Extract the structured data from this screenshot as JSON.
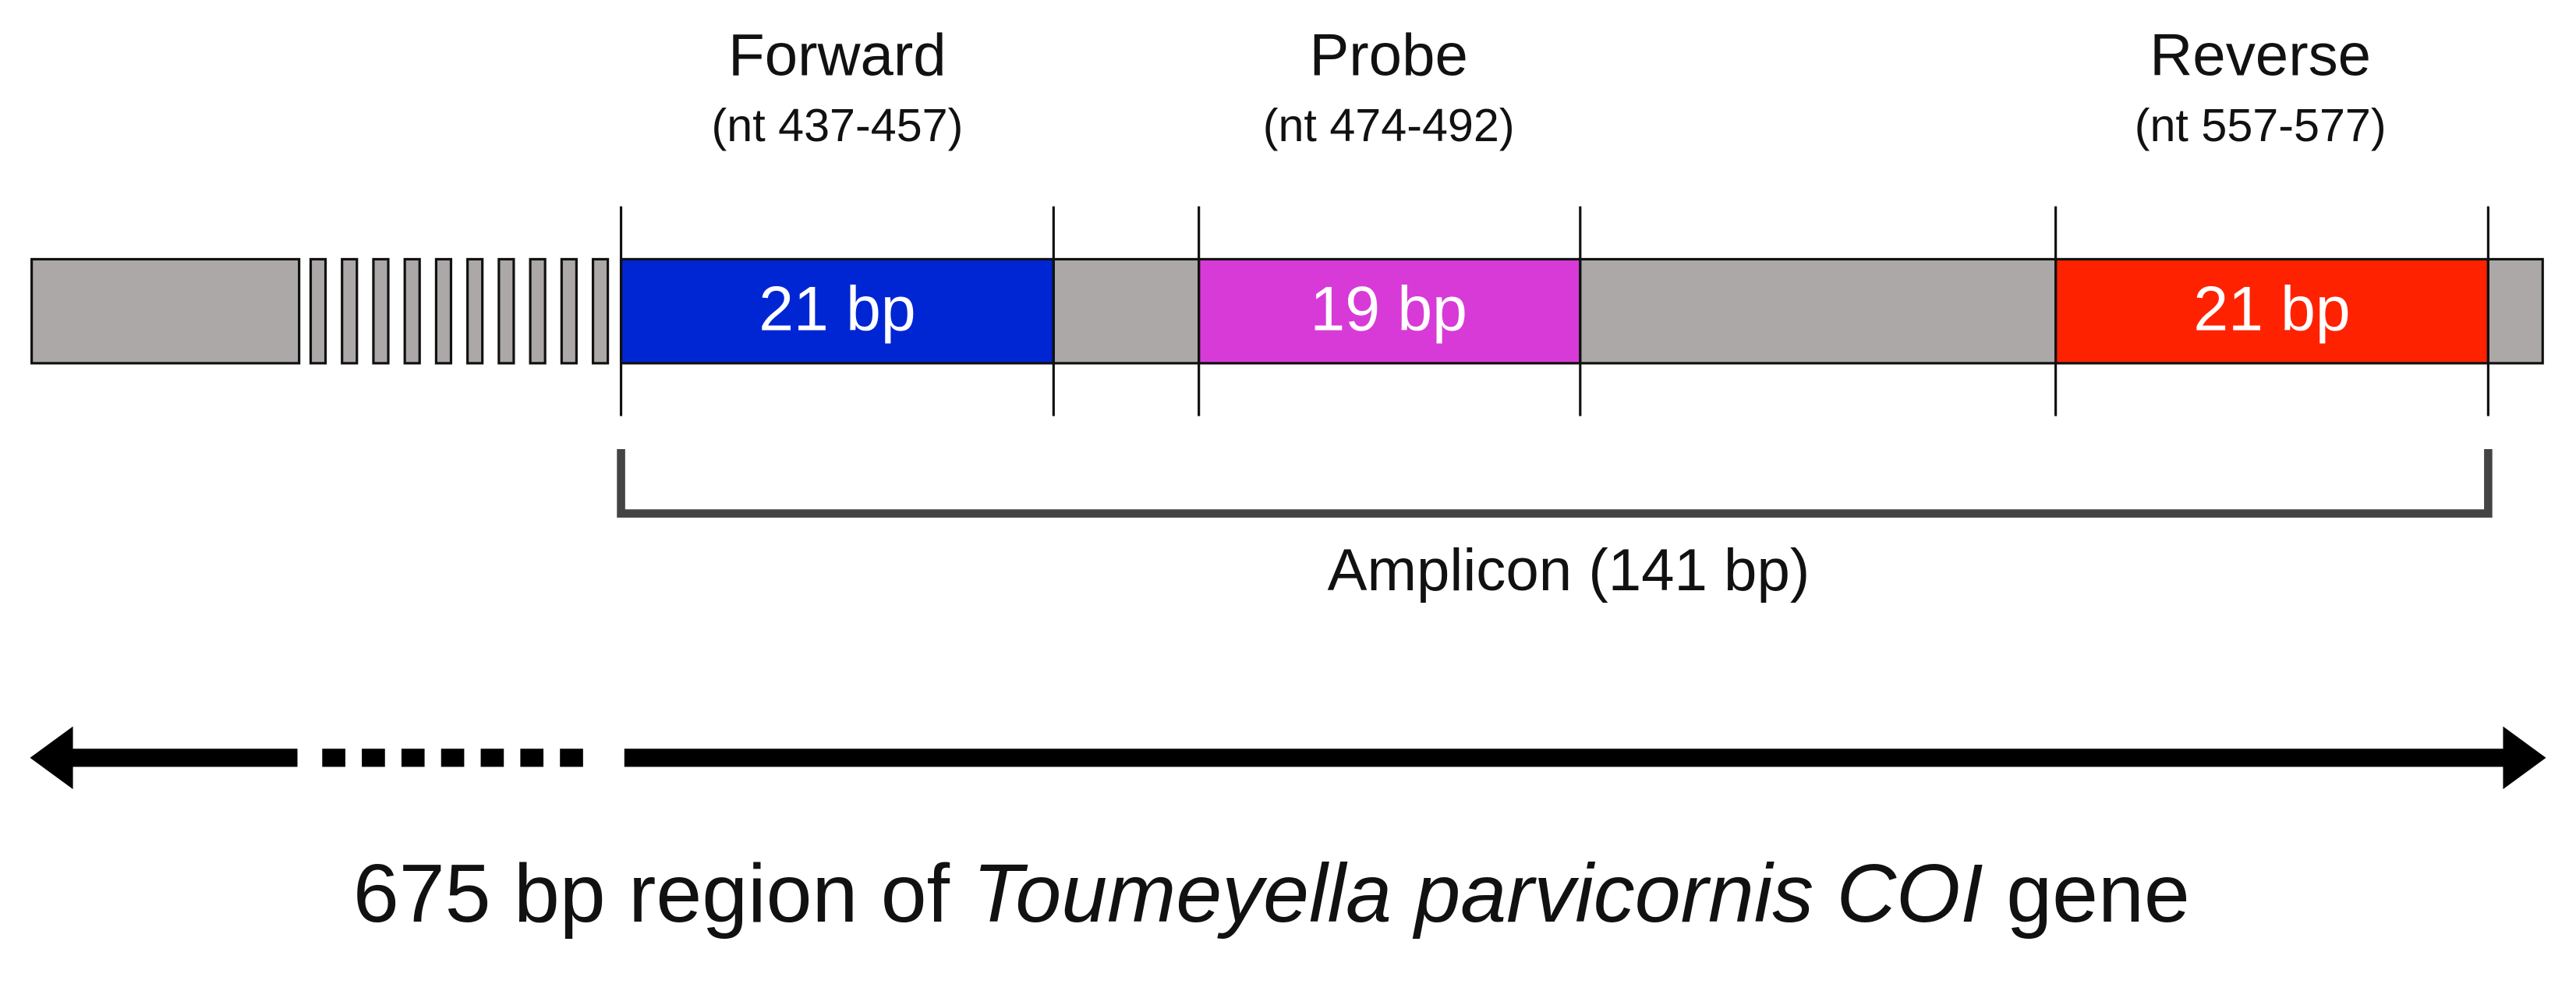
{
  "primers": [
    {
      "name": "Forward",
      "position": "(nt 437-457)",
      "length": "21 bp"
    },
    {
      "name": "Probe",
      "position": "(nt 474-492)",
      "length": "19 bp"
    },
    {
      "name": "Reverse",
      "position": "(nt 557-577)",
      "length": "21 bp"
    }
  ],
  "amplicon": "Amplicon (141 bp)",
  "caption": {
    "prefix": "675 bp region of ",
    "species": "Toumeyella parvicornis",
    "gene": "COI",
    "suffix": " gene"
  }
}
